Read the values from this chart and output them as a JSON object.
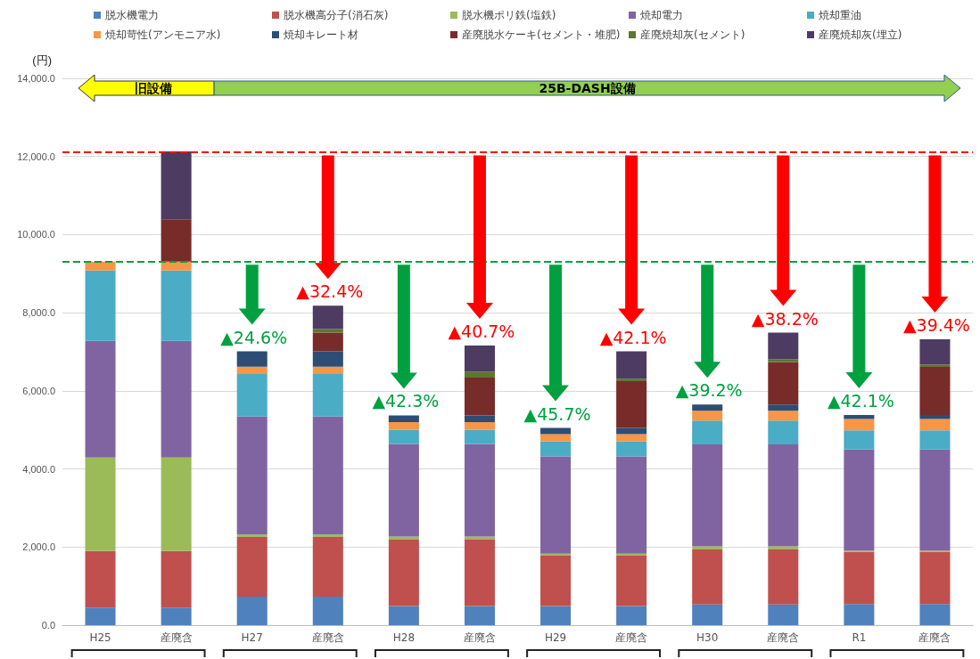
{
  "chart_data": {
    "type": "bar",
    "stacked": true,
    "legend": "top",
    "grid": "y",
    "ylabel": "(円)",
    "categories": [
      "H25",
      "産廃含",
      "H27",
      "産廃含",
      "H28",
      "産廃含",
      "H29",
      "産廃含",
      "H30",
      "産廃含",
      "R1",
      "産廃含"
    ],
    "ylim": [
      0,
      14000
    ],
    "yticks": [
      {
        "value": 0,
        "label": "0.0"
      },
      {
        "value": 2000,
        "label": "2,000.0"
      },
      {
        "value": 4000,
        "label": "4,000.0"
      },
      {
        "value": 6000,
        "label": "6,000.0"
      },
      {
        "value": 8000,
        "label": "8,000.0"
      },
      {
        "value": 10000,
        "label": "10,000.0"
      },
      {
        "value": 12000,
        "label": "12,000.0"
      },
      {
        "value": 14000,
        "label": "14,000.0"
      }
    ],
    "series": [
      {
        "name": "脱水機電力",
        "color": "#4f81bd",
        "values": [
          450,
          450,
          730,
          730,
          490,
          490,
          490,
          490,
          530,
          530,
          540,
          540
        ]
      },
      {
        "name": "脱水機高分子(消石灰)",
        "color": "#c0504d",
        "values": [
          1450,
          1450,
          1530,
          1530,
          1700,
          1700,
          1290,
          1290,
          1410,
          1410,
          1340,
          1340
        ]
      },
      {
        "name": "脱水機ポリ鉄(塩鉄)",
        "color": "#9bbb59",
        "values": [
          2390,
          2390,
          60,
          60,
          80,
          80,
          50,
          50,
          80,
          80,
          30,
          30
        ]
      },
      {
        "name": "焼却電力",
        "color": "#8064a2",
        "values": [
          2990,
          2990,
          3020,
          3020,
          2370,
          2370,
          2490,
          2490,
          2610,
          2610,
          2590,
          2590
        ]
      },
      {
        "name": "焼却重油",
        "color": "#4bacc6",
        "values": [
          1800,
          1800,
          1090,
          1090,
          360,
          360,
          390,
          390,
          610,
          610,
          490,
          490
        ]
      },
      {
        "name": "焼却苛性(アンモニア水)",
        "color": "#f79646",
        "values": [
          230,
          230,
          190,
          190,
          200,
          200,
          180,
          180,
          250,
          250,
          290,
          290
        ]
      },
      {
        "name": "焼却キレート材",
        "color": "#2c4d75",
        "values": [
          0,
          0,
          390,
          390,
          170,
          170,
          160,
          160,
          160,
          160,
          100,
          100
        ]
      },
      {
        "name": "産廃脱水ケーキ(セメント・堆肥)",
        "color": "#772c2a",
        "values": [
          0,
          1080,
          0,
          480,
          0,
          970,
          0,
          1200,
          0,
          1090,
          0,
          1230
        ]
      },
      {
        "name": "産廃焼却灰(セメント)",
        "color": "#5f7530",
        "values": [
          0,
          0,
          0,
          90,
          0,
          150,
          0,
          60,
          0,
          70,
          0,
          60
        ]
      },
      {
        "name": "産廃焼却灰(埋立)",
        "color": "#4d3b62",
        "values": [
          0,
          1740,
          0,
          600,
          0,
          670,
          0,
          700,
          0,
          680,
          0,
          650
        ]
      }
    ],
    "ref_lines": [
      {
        "axis": "y",
        "value": 12120,
        "color": "#ff0000",
        "line_style": "dashed"
      },
      {
        "axis": "y",
        "value": 9320,
        "color": "#00a040",
        "line_style": "dashed"
      }
    ],
    "annotations": [
      "旧設備",
      "25B-DASH設備",
      {
        "text": "▲24.6%",
        "x": "H27",
        "y": 7010
      },
      {
        "text": "▲32.4%",
        "y": 8180
      },
      {
        "text": "▲42.3%",
        "x": "H28",
        "y": 5370
      },
      {
        "text": "▲40.7%",
        "y": 7160
      },
      {
        "text": "▲45.7%",
        "x": "H29",
        "y": 5050
      },
      {
        "text": "▲42.1%",
        "y": 7010
      },
      {
        "text": "▲39.2%",
        "x": "H30",
        "y": 5650
      },
      {
        "text": "▲38.2%",
        "y": 7490
      },
      {
        "text": "▲42.1%",
        "x": "R1",
        "y": 5380
      },
      {
        "text": "▲39.4%",
        "y": 7320
      }
    ]
  }
}
